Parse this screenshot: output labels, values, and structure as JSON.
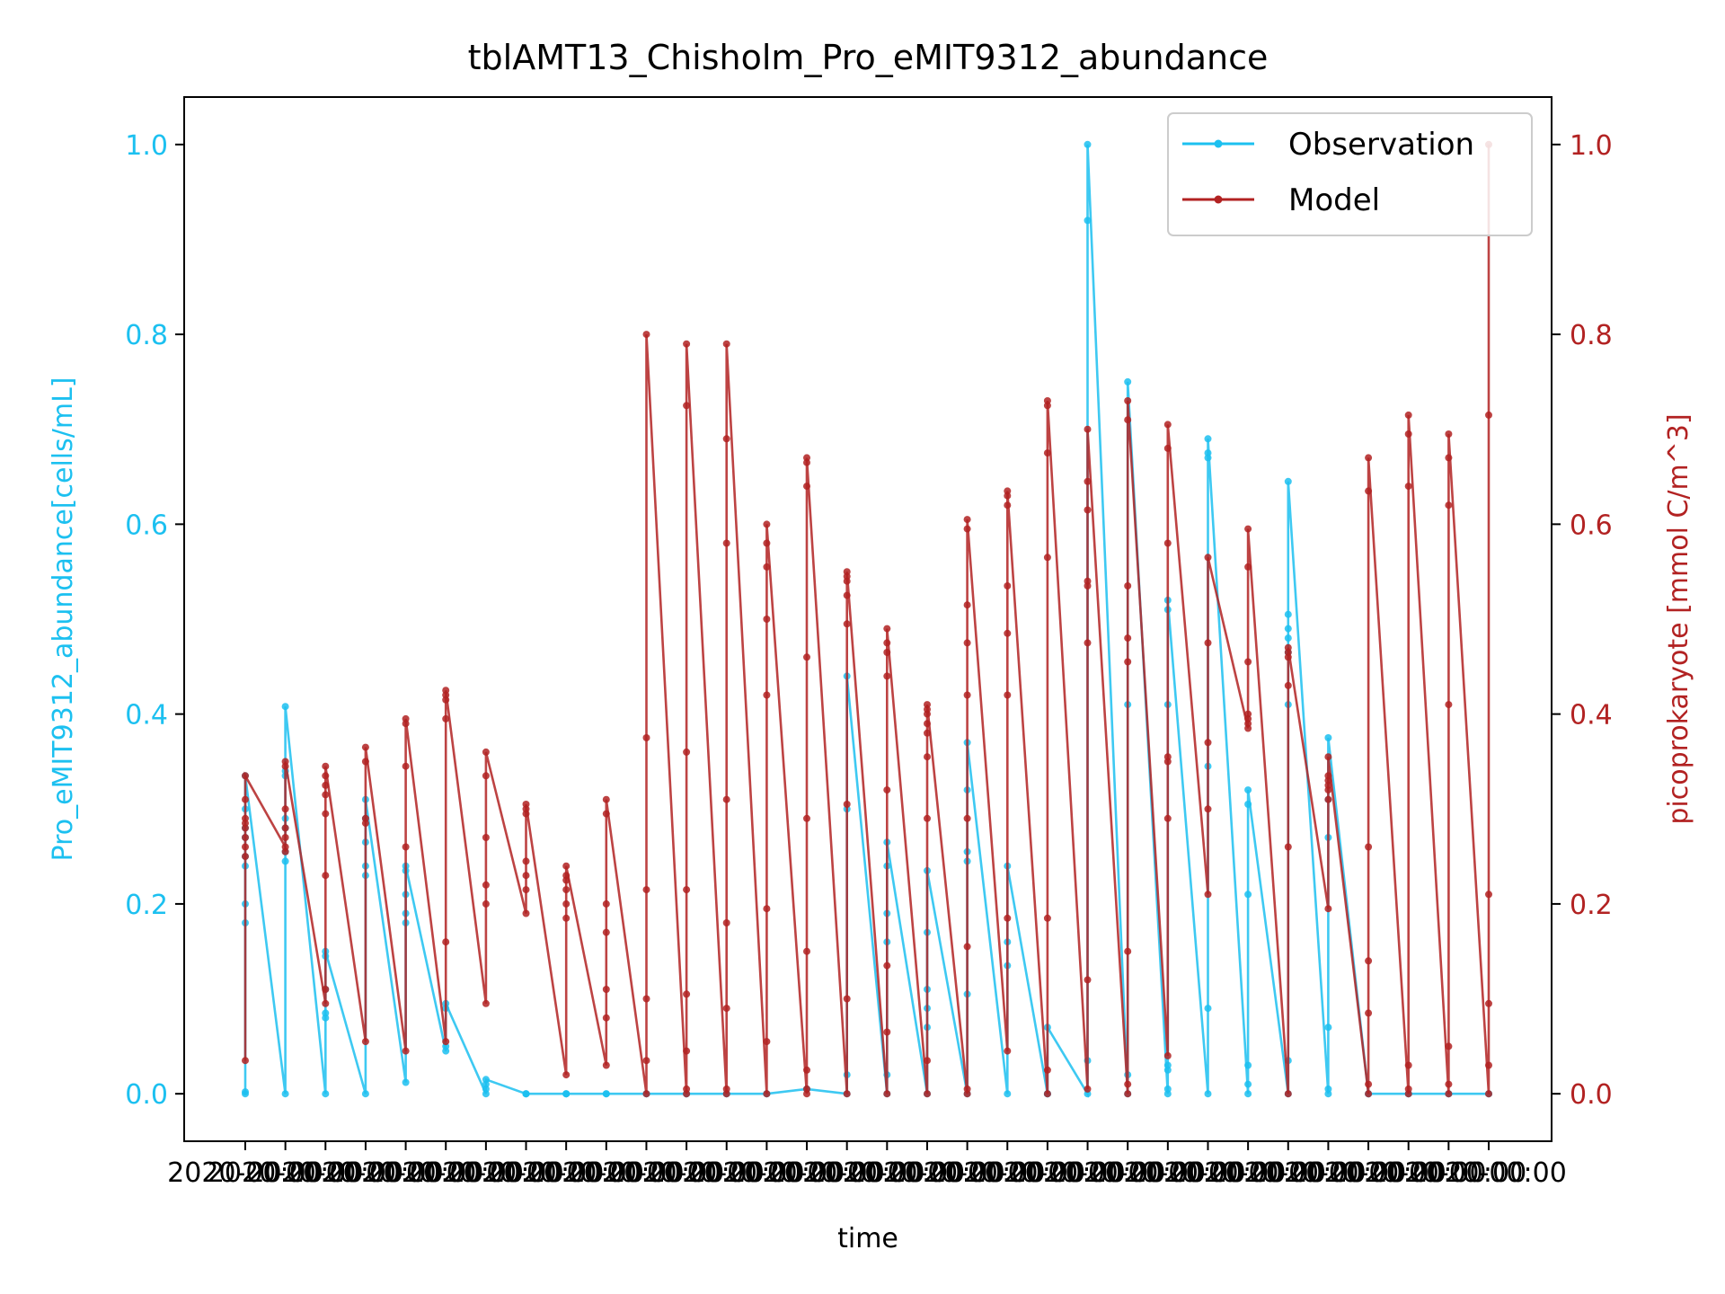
{
  "chart_data": {
    "type": "line",
    "title": "tblAMT13_Chisholm_Pro_eMIT9312_abundance",
    "xlabel": "time",
    "ylabel_left": "Pro_eMIT9312_abundance[cells/mL]",
    "ylabel_right": "picoprokaryote [mmol C/m^3]",
    "ylim": [
      -0.05,
      1.05
    ],
    "yticks": [
      0.0,
      0.2,
      0.4,
      0.6,
      0.8,
      1.0
    ],
    "ytick_labels": [
      "0.0",
      "0.2",
      "0.4",
      "0.6",
      "0.8",
      "1.0"
    ],
    "grid": false,
    "legend_position": "top-right",
    "colors": {
      "observation": "#1cc0f0",
      "model": "#b22222"
    },
    "x_ticks": [
      "2020-00:00",
      "2020-00:00",
      "2020-00:00",
      "2020-00:00",
      "2020-00:00",
      "2020-00:00",
      "2020-00:00",
      "2020-00:00",
      "2020-00:00",
      "2020-00:00",
      "2020-00:00",
      "2020-00:00",
      "2020-00:00",
      "2020-00:00",
      "2020-00:00",
      "2020-00:00",
      "2020-00:00",
      "2020-00:00",
      "2020-00:00",
      "2020-00:00",
      "2020-00:00",
      "2020-00:00",
      "2020-00:00",
      "2020-00:00",
      "2020-00:00",
      "2020-00:00",
      "2020-00:00",
      "2020-00:00",
      "2020-00:00",
      "2020-00:00",
      "2020-00:00",
      "2020-00:00"
    ],
    "series": [
      {
        "name": "Observation",
        "axis": "left",
        "groups": [
          [
            0.002,
            0.0,
            0.18,
            0.2,
            0.24,
            0.25,
            0.27,
            0.28,
            0.3,
            0.335
          ],
          [
            0.0,
            0.245,
            0.255,
            0.28,
            0.29,
            0.335,
            0.34,
            0.408
          ],
          [
            0.0,
            0.08,
            0.085,
            0.11,
            0.145,
            0.15
          ],
          [
            0.0,
            0.23,
            0.24,
            0.265,
            0.29,
            0.31
          ],
          [
            0.012,
            0.18,
            0.19,
            0.21,
            0.235,
            0.24
          ],
          [
            0.045,
            0.05,
            0.09,
            0.095
          ],
          [
            0.0,
            0.005,
            0.01,
            0.015
          ],
          [
            0.0,
            0.0,
            0.0
          ],
          [
            0.0,
            0.0,
            0.0
          ],
          [
            0.0,
            0.0
          ],
          [
            0.0,
            0.0
          ],
          [
            0.0,
            0.0
          ],
          [
            0.0,
            0.0
          ],
          [
            0.0,
            0.0
          ],
          [
            0.005,
            0.005
          ],
          [
            0.0,
            0.02,
            0.3,
            0.44
          ],
          [
            0.0,
            0.02,
            0.16,
            0.19,
            0.24,
            0.265
          ],
          [
            0.0,
            0.07,
            0.09,
            0.11,
            0.17,
            0.235
          ],
          [
            0.0,
            0.105,
            0.245,
            0.255,
            0.32,
            0.37
          ],
          [
            0.0,
            0.135,
            0.16,
            0.24
          ],
          [
            0.0,
            0.0,
            0.0,
            0.07
          ],
          [
            0.0,
            0.035,
            0.92,
            1.0
          ],
          [
            0.0,
            0.02,
            0.41,
            0.75
          ],
          [
            0.0,
            0.005,
            0.025,
            0.03,
            0.41,
            0.51,
            0.52
          ],
          [
            0.0,
            0.09,
            0.345,
            0.67,
            0.675,
            0.69
          ],
          [
            0.0,
            0.01,
            0.03,
            0.21,
            0.305,
            0.32
          ],
          [
            0.0,
            0.035,
            0.41,
            0.465,
            0.48,
            0.49,
            0.505,
            0.645
          ],
          [
            0.0,
            0.005,
            0.07,
            0.27,
            0.31,
            0.375
          ],
          [
            0.0,
            0.0
          ],
          [
            0.0,
            0.0
          ],
          [
            0.0,
            0.0
          ],
          [
            0.0,
            0.0
          ]
        ]
      },
      {
        "name": "Model",
        "axis": "right",
        "groups": [
          [
            0.035,
            0.25,
            0.26,
            0.27,
            0.28,
            0.285,
            0.29,
            0.31,
            0.335
          ],
          [
            0.26,
            0.255,
            0.27,
            0.28,
            0.3,
            0.345,
            0.35
          ],
          [
            0.095,
            0.11,
            0.23,
            0.295,
            0.315,
            0.325,
            0.335,
            0.345
          ],
          [
            0.055,
            0.285,
            0.29,
            0.35,
            0.365
          ],
          [
            0.045,
            0.26,
            0.345,
            0.39,
            0.395
          ],
          [
            0.055,
            0.16,
            0.395,
            0.415,
            0.42,
            0.425
          ],
          [
            0.095,
            0.2,
            0.22,
            0.27,
            0.335,
            0.36
          ],
          [
            0.19,
            0.215,
            0.23,
            0.245,
            0.295,
            0.3,
            0.305
          ],
          [
            0.02,
            0.185,
            0.2,
            0.215,
            0.225,
            0.23,
            0.24
          ],
          [
            0.03,
            0.08,
            0.11,
            0.17,
            0.2,
            0.295,
            0.31
          ],
          [
            0.0,
            0.035,
            0.1,
            0.215,
            0.375,
            0.8
          ],
          [
            0.0,
            0.005,
            0.045,
            0.105,
            0.215,
            0.36,
            0.725,
            0.79
          ],
          [
            0.0,
            0.005,
            0.09,
            0.18,
            0.31,
            0.58,
            0.69,
            0.79
          ],
          [
            0.0,
            0.055,
            0.195,
            0.42,
            0.5,
            0.555,
            0.58,
            0.6
          ],
          [
            0.0,
            0.005,
            0.025,
            0.15,
            0.29,
            0.46,
            0.64,
            0.665,
            0.67
          ],
          [
            0.0,
            0.1,
            0.305,
            0.495,
            0.525,
            0.54,
            0.545,
            0.55
          ],
          [
            0.0,
            0.065,
            0.135,
            0.32,
            0.44,
            0.465,
            0.475,
            0.49
          ],
          [
            0.0,
            0.035,
            0.29,
            0.355,
            0.38,
            0.39,
            0.4,
            0.405,
            0.41
          ],
          [
            0.0,
            0.005,
            0.155,
            0.29,
            0.42,
            0.475,
            0.515,
            0.595,
            0.605
          ],
          [
            0.045,
            0.185,
            0.42,
            0.485,
            0.535,
            0.62,
            0.63,
            0.635
          ],
          [
            0.0,
            0.025,
            0.185,
            0.565,
            0.675,
            0.725,
            0.73
          ],
          [
            0.005,
            0.12,
            0.475,
            0.535,
            0.54,
            0.615,
            0.645,
            0.7
          ],
          [
            0.0,
            0.01,
            0.15,
            0.455,
            0.48,
            0.535,
            0.71,
            0.73
          ],
          [
            0.04,
            0.29,
            0.35,
            0.355,
            0.58,
            0.68,
            0.705
          ],
          [
            0.21,
            0.3,
            0.37,
            0.475,
            0.565
          ],
          [
            0.385,
            0.39,
            0.395,
            0.4,
            0.455,
            0.555,
            0.595
          ],
          [
            0.0,
            0.26,
            0.43,
            0.46,
            0.465,
            0.47
          ],
          [
            0.195,
            0.31,
            0.32,
            0.325,
            0.33,
            0.335,
            0.355
          ],
          [
            0.0,
            0.01,
            0.085,
            0.14,
            0.26,
            0.635,
            0.67
          ],
          [
            0.0,
            0.005,
            0.03,
            0.64,
            0.695,
            0.715
          ],
          [
            0.0,
            0.01,
            0.05,
            0.41,
            0.62,
            0.67,
            0.695
          ],
          [
            0.0,
            0.03,
            0.095,
            0.21,
            0.715,
            1.0
          ]
        ]
      }
    ]
  }
}
